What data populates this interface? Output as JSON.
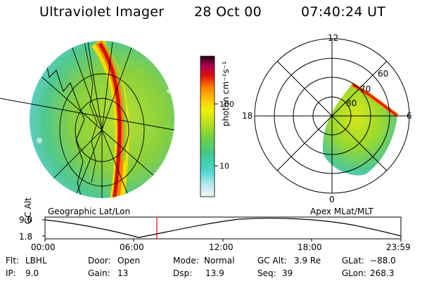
{
  "header": {
    "title": "Ultraviolet Imager",
    "date": "28 Oct 00",
    "time": "07:40:24 UT"
  },
  "colorbar": {
    "unit_label": "photon cm⁻²s⁻¹",
    "ticks": [
      "100",
      "10"
    ],
    "scale": "log"
  },
  "left_panel": {
    "caption": "Geographic Lat/Lon"
  },
  "right_panel": {
    "caption": "Apex MLat/MLT",
    "mlt_labels": [
      "12",
      "18",
      "6",
      "0"
    ],
    "mlat_labels": [
      "60",
      "70",
      "80"
    ]
  },
  "altitude_plot": {
    "ylabel": "GC Alt",
    "y_ticks": [
      "9.0",
      "1.8"
    ],
    "x_ticks": [
      "00:00",
      "06:00",
      "12:00",
      "18:00",
      "23:59"
    ],
    "current_time_marker": "07:40"
  },
  "info": {
    "flt_label": "Flt:",
    "flt_value": "LBHL",
    "ip_label": "IP:",
    "ip_value": "9.0",
    "door_label": "Door:",
    "door_value": "Open",
    "gain_label": "Gain:",
    "gain_value": "13",
    "mode_label": "Mode:",
    "mode_value": "Normal",
    "dsp_label": "Dsp:",
    "dsp_value": "13.9",
    "gcalt_label": "GC Alt:",
    "gcalt_value": "3.9 Re",
    "seq_label": "Seq:",
    "seq_value": "39",
    "glat_label": "GLat:",
    "glat_value": "−88.0",
    "glon_label": "GLon:",
    "glon_value": "268.3"
  }
}
